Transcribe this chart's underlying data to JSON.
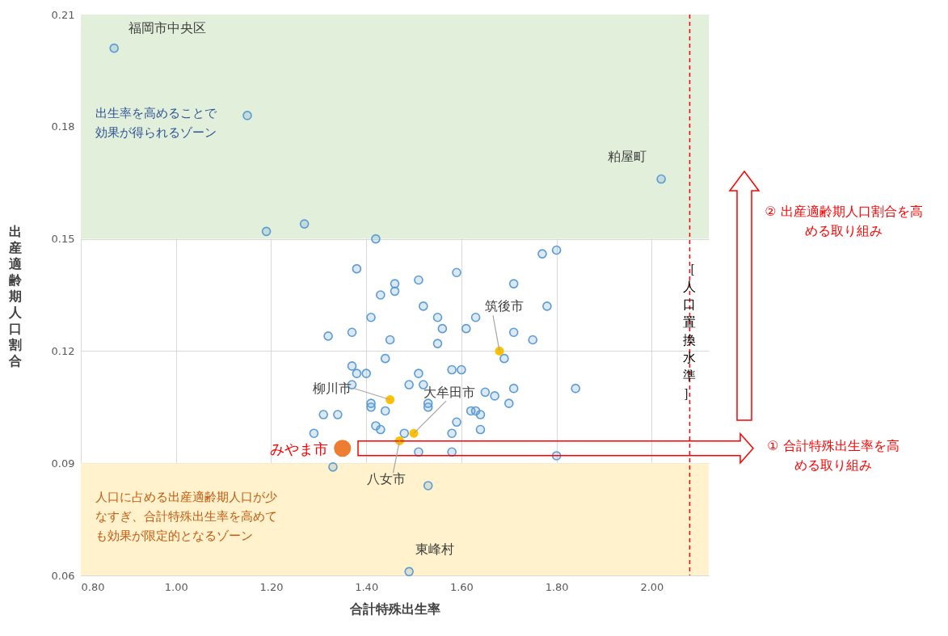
{
  "chart_data": {
    "type": "scatter",
    "xlabel": "合計特殊出生率",
    "ylabel": "出産適齢期人口割合",
    "xlim": [
      0.8,
      2.12
    ],
    "xticks": [
      {
        "value": 0.8,
        "label": "0.80"
      },
      {
        "value": 1.0,
        "label": "1.00"
      },
      {
        "value": 1.2,
        "label": "1.20"
      },
      {
        "value": 1.4,
        "label": "1.40"
      },
      {
        "value": 1.6,
        "label": "1.60"
      },
      {
        "value": 1.8,
        "label": "1.80"
      },
      {
        "value": 2.0,
        "label": "2.00"
      }
    ],
    "ylim": [
      0.06,
      0.21
    ],
    "yticks": [
      0.06,
      0.09,
      0.12,
      0.15,
      0.18,
      0.21
    ],
    "grid": true,
    "marker": "circle",
    "series": [
      {
        "color": "#5b9bd5",
        "x": [
          0.87,
          1.15,
          2.02,
          1.19,
          1.27,
          1.42,
          1.38,
          1.77,
          1.8,
          1.51,
          1.71,
          1.46,
          1.46,
          1.43,
          1.59,
          1.52,
          1.55,
          1.63,
          1.78,
          1.41,
          1.56,
          1.61,
          1.71,
          1.75,
          1.32,
          1.37,
          1.45,
          1.55,
          1.69,
          1.44,
          1.37,
          1.38,
          1.4,
          1.58,
          1.6,
          1.51,
          1.49,
          1.52,
          1.37,
          1.41,
          1.41,
          1.44,
          1.31,
          1.34,
          1.53,
          1.53,
          1.42,
          1.43,
          1.29,
          1.48,
          1.51,
          1.33,
          1.53,
          1.65,
          1.67,
          1.71,
          1.7,
          1.84,
          1.62,
          1.63,
          1.64,
          1.59,
          1.58,
          1.64,
          1.58,
          1.8,
          1.49
        ],
        "values": [
          0.201,
          0.183,
          0.166,
          0.152,
          0.154,
          0.15,
          0.142,
          0.146,
          0.147,
          0.139,
          0.138,
          0.138,
          0.136,
          0.135,
          0.141,
          0.132,
          0.129,
          0.129,
          0.132,
          0.129,
          0.126,
          0.126,
          0.125,
          0.123,
          0.124,
          0.125,
          0.123,
          0.122,
          0.118,
          0.118,
          0.116,
          0.114,
          0.114,
          0.115,
          0.115,
          0.114,
          0.111,
          0.111,
          0.111,
          0.106,
          0.105,
          0.104,
          0.103,
          0.103,
          0.106,
          0.105,
          0.1,
          0.099,
          0.098,
          0.098,
          0.093,
          0.089,
          0.084,
          0.109,
          0.108,
          0.11,
          0.106,
          0.11,
          0.104,
          0.104,
          0.103,
          0.101,
          0.098,
          0.099,
          0.093,
          0.092,
          0.061
        ]
      },
      {
        "color": "#ffc000",
        "x": [
          1.68,
          1.45,
          1.5,
          1.47
        ],
        "values": [
          0.12,
          0.107,
          0.098,
          0.096
        ]
      },
      {
        "color": "#ed7d31",
        "x": [
          1.35
        ],
        "values": [
          0.094
        ]
      }
    ],
    "bands": [
      {
        "axis": "y",
        "from": 0.15,
        "to": 0.21,
        "color": "#e2efda",
        "label": "出生率を高めることで効果が得られるゾーン"
      },
      {
        "axis": "y",
        "from": 0.06,
        "to": 0.09,
        "color": "#fff2cc",
        "label": "人口に占める出産適齢期人口が少なすぎ、合計特殊出生率を高めても効果が限定的となるゾーン"
      }
    ],
    "ref_lines": [
      {
        "axis": "x",
        "value": 2.08,
        "label": "［人口置換水準］",
        "color": "#ff0000",
        "line_style": "dashed"
      }
    ],
    "annotations": [
      {
        "text": "福岡市中央区",
        "x": 0.87,
        "y": 0.201
      },
      {
        "text": "粕屋町",
        "x": 2.02,
        "y": 0.166
      },
      {
        "text": "筑後市",
        "x": 1.68,
        "y": 0.12
      },
      {
        "text": "柳川市",
        "x": 1.45,
        "y": 0.107
      },
      {
        "text": "大牟田市",
        "x": 1.5,
        "y": 0.098
      },
      {
        "text": "八女市",
        "x": 1.47,
        "y": 0.096
      },
      {
        "text": "東峰村",
        "x": 1.49,
        "y": 0.061
      },
      {
        "text": "みやま市",
        "x": 1.35,
        "y": 0.094
      },
      "①  合計特殊出生率を高める取り組み",
      "②  出産適齢期人口割合を高める取り組み"
    ]
  }
}
